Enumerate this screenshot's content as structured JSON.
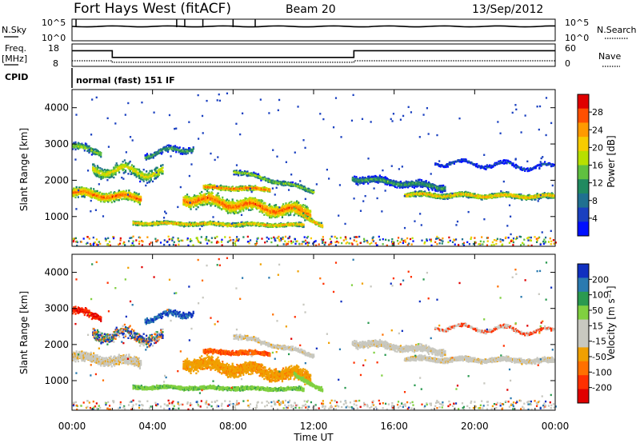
{
  "header": {
    "station": "Fort Hays West (fitACF)",
    "beam": "Beam 20",
    "date": "13/Sep/2012"
  },
  "top_panels": {
    "nsky_label": "N.Sky",
    "nsky_ticks": [
      "10^5",
      "10^0"
    ],
    "nsearch_label": "N.Search",
    "nsearch_ticks": [
      "10^5",
      "10^0"
    ],
    "freq_label": "Freq.",
    "freq_unit": "[MHz]",
    "freq_ticks": [
      18,
      8
    ],
    "nave_label": "Nave",
    "nave_ticks": [
      60,
      0
    ],
    "cpid_label": "CPID",
    "cpid_text": "normal (fast) 151 IF"
  },
  "chart_data": [
    {
      "type": "line",
      "panel": "frequency",
      "ylabel": "Freq. [MHz]",
      "ylim": [
        8,
        18
      ],
      "x_hours": [
        0,
        2,
        2,
        14,
        14,
        24
      ],
      "freq_mhz": [
        15,
        15,
        12,
        12,
        15,
        15
      ],
      "nave_hours": [
        0,
        2,
        2,
        14,
        14,
        24
      ],
      "nave": [
        15,
        15,
        11,
        11,
        15,
        15
      ]
    },
    {
      "type": "heatmap",
      "panel": "power",
      "ylabel": "Slant Range [km]",
      "xlabel": "",
      "xlim_hours": [
        0,
        24
      ],
      "ylim_km": [
        180,
        4500
      ],
      "y_ticks": [
        1000,
        2000,
        3000,
        4000
      ],
      "colorbar": {
        "label": "Power [dB]",
        "ticks": [
          28,
          24,
          20,
          16,
          12,
          8,
          4
        ],
        "colors": [
          "#e00000",
          "#ff5000",
          "#ff9a00",
          "#f7cc00",
          "#b7e000",
          "#60c040",
          "#208a60",
          "#207090",
          "#1a40c0",
          "#0010ff"
        ]
      }
    },
    {
      "type": "heatmap",
      "panel": "velocity",
      "ylabel": "Slant Range [km]",
      "xlabel": "Time UT",
      "xlim_hours": [
        0,
        24
      ],
      "ylim_km": [
        180,
        4500
      ],
      "y_ticks": [
        1000,
        2000,
        3000,
        4000
      ],
      "x_ticks": [
        "00:00",
        "04:00",
        "08:00",
        "12:00",
        "16:00",
        "20:00",
        "00:00"
      ],
      "colorbar": {
        "label": "Velocity [m s⁻¹]",
        "ticks": [
          200,
          100,
          50,
          15,
          -15,
          -50,
          -100,
          -200
        ],
        "colors": [
          "#1030c0",
          "#2a7ab0",
          "#2a9a50",
          "#80d040",
          "#c8c8c0",
          "#c8c8c0",
          "#f0a000",
          "#ff7000",
          "#ff3000",
          "#e00000"
        ]
      }
    }
  ]
}
